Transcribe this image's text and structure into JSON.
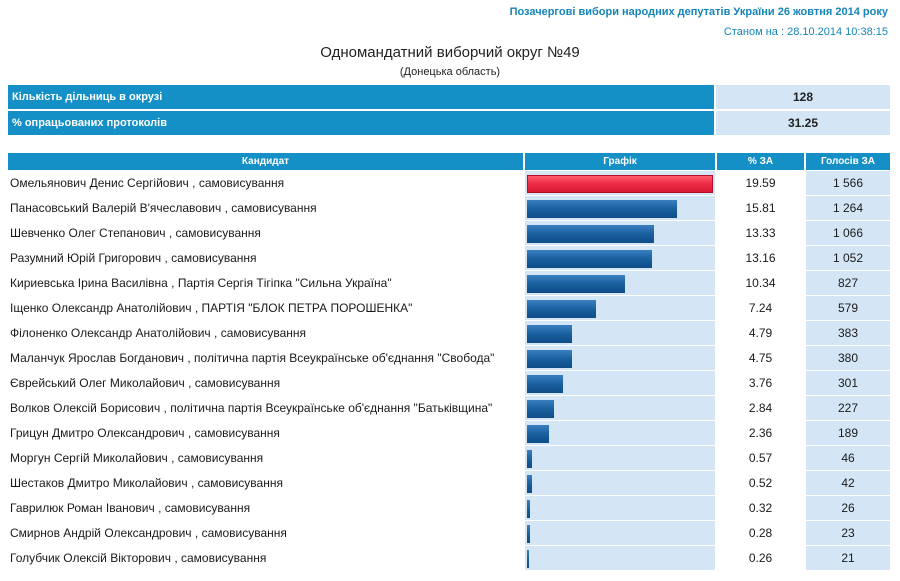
{
  "header": {
    "election_title": "Позачергові вибори народних депутатів України 26 жовтня 2014 року",
    "as_of": "Станом на : 28.10.2014 10:38:15"
  },
  "district": {
    "title": "Одномандатний виборчий округ №49",
    "region": "(Донецька область)"
  },
  "summary": [
    {
      "label": "Кількість дільниць в окрузі",
      "value": "128"
    },
    {
      "label": "% опрацьованих протоколів",
      "value": "31.25"
    }
  ],
  "table": {
    "columns": [
      "Кандидат",
      "Графік",
      "% ЗА",
      "Голосів ЗА"
    ],
    "rows": [
      {
        "candidate": "Омельянович Денис Сергійович",
        "party": " , самовисування",
        "percent": "19.59",
        "votes": "1 566",
        "share": 19.59
      },
      {
        "candidate": "Панасовський Валерій В'ячеславович",
        "party": " , самовисування",
        "percent": "15.81",
        "votes": "1 264",
        "share": 15.81
      },
      {
        "candidate": "Шевченко Олег Степанович",
        "party": " , самовисування",
        "percent": "13.33",
        "votes": "1 066",
        "share": 13.33
      },
      {
        "candidate": "Разумний Юрій Григорович",
        "party": " , самовисування",
        "percent": "13.16",
        "votes": "1 052",
        "share": 13.16
      },
      {
        "candidate": "Кириевська Ірина Василівна",
        "party": " , Партія Сергія Тігіпка \"Сильна Україна\"",
        "percent": "10.34",
        "votes": "827",
        "share": 10.34
      },
      {
        "candidate": "Іщенко Олександр Анатолійович",
        "party": " , ПАРТІЯ \"БЛОК ПЕТРА ПОРОШЕНКА\"",
        "percent": "7.24",
        "votes": "579",
        "share": 7.24
      },
      {
        "candidate": "Філоненко Олександр Анатолійович",
        "party": " , самовисування",
        "percent": "4.79",
        "votes": "383",
        "share": 4.79
      },
      {
        "candidate": "Маланчук Ярослав Богданович",
        "party": " , політична партія Всеукраїнське об'єднання \"Свобода\"",
        "percent": "4.75",
        "votes": "380",
        "share": 4.75
      },
      {
        "candidate": "Єврейський Олег Миколайович",
        "party": " , самовисування",
        "percent": "3.76",
        "votes": "301",
        "share": 3.76
      },
      {
        "candidate": "Волков Олексій Борисович",
        "party": " , політична партія Всеукраїнське об'єднання \"Батьківщина\"",
        "percent": "2.84",
        "votes": "227",
        "share": 2.84
      },
      {
        "candidate": "Грицун Дмитро Олександрович",
        "party": " , самовисування",
        "percent": "2.36",
        "votes": "189",
        "share": 2.36
      },
      {
        "candidate": "Моргун Сергій Миколайович",
        "party": " , самовисування",
        "percent": "0.57",
        "votes": "46",
        "share": 0.57
      },
      {
        "candidate": "Шестаков Дмитро Миколайович",
        "party": " , самовисування",
        "percent": "0.52",
        "votes": "42",
        "share": 0.52
      },
      {
        "candidate": "Гаврилюк Роман Іванович",
        "party": " , самовисування",
        "percent": "0.32",
        "votes": "26",
        "share": 0.32
      },
      {
        "candidate": "Смирнов Андрій Олександрович",
        "party": " , самовисування",
        "percent": "0.28",
        "votes": "23",
        "share": 0.28
      },
      {
        "candidate": "Голубчик Олексій Вікторович",
        "party": " , самовисування",
        "percent": "0.26",
        "votes": "21",
        "share": 0.26
      }
    ]
  },
  "colors": {
    "header_blue": "#1590c6",
    "cell_light": "#d4e6f5",
    "bar_blue": "#1a5f9e",
    "bar_leader": "#ee2a45"
  }
}
